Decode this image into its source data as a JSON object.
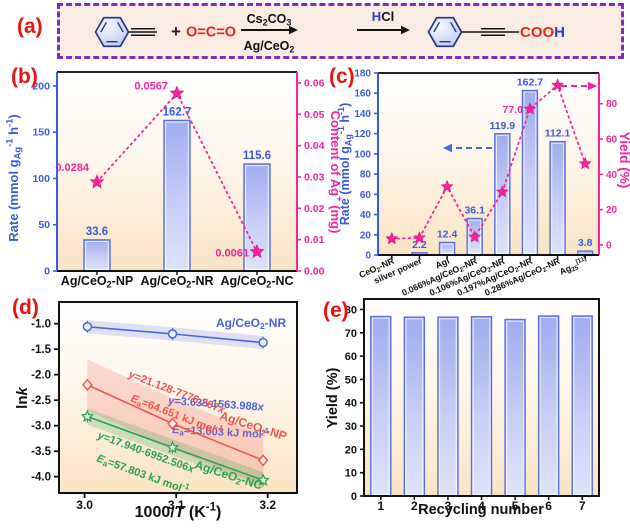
{
  "colors": {
    "blue": "#3C5BDC",
    "pink": "#F5239E",
    "panel_letter_red": "#EE1111",
    "line_blue": "#4A63E0",
    "line_red": "#F0544F",
    "line_green": "#2BA24C",
    "bar_border": "#5C6CE3",
    "bar_top": "#9FACEF",
    "bar_mid": "#C7CEF7",
    "bar_bottom": "#DEE3FB",
    "plot_bg_bottom": "#FAE4C4",
    "panel_a_bg": "#FAEBE3",
    "panel_a_border": "#7B2FBF",
    "co2_red": "#E8231F",
    "hcl_blue": "#2B3BD6",
    "ink": "#111111"
  },
  "panels": {
    "a": {
      "label": "(a)",
      "reaction": {
        "plus": "+",
        "co2": "O=C=O",
        "arrow1_top": "Cs<sub>2</sub>CO<sub>3</sub>",
        "arrow1_bottom": "Ag/CeO<sub>2</sub>",
        "hcl_h": "H",
        "hcl_cl": "Cl",
        "product_coo": "COO",
        "product_h": "H"
      }
    },
    "b": {
      "label": "(b)"
    },
    "c": {
      "label": "(c)"
    },
    "d": {
      "label": "(d)"
    },
    "e": {
      "label": "(e)"
    }
  },
  "chart_data": [
    {
      "id": "b",
      "type": "bar+scatter",
      "categories": [
        "Ag/CeO<sub>2</sub>-NP",
        "Ag/CeO<sub>2</sub>-NR",
        "Ag/CeO<sub>2</sub>-NC"
      ],
      "bars": {
        "values": [
          33.6,
          162.7,
          115.6
        ],
        "labels": [
          "33.6",
          "162.7",
          "115.6"
        ]
      },
      "scatter": {
        "values": [
          0.0284,
          0.0567,
          0.0061
        ],
        "labels": [
          "0.0284",
          "0.0567",
          "0.0061"
        ]
      },
      "axes": {
        "left": {
          "title": "Rate (mmol g<sub>Ag</sub><sup>-1</sup> h<sup>-1</sup>)",
          "ticks": [
            0,
            50,
            100,
            150,
            200
          ],
          "lim": [
            0,
            215
          ],
          "fmt": 0
        },
        "right": {
          "title": "Content of Ag<sup>+</sup> (mg)",
          "ticks": [
            0,
            0.01,
            0.02,
            0.03,
            0.04,
            0.05,
            0.06
          ],
          "lim": [
            0,
            0.0635
          ],
          "fmt": 2
        }
      }
    },
    {
      "id": "c",
      "type": "bar+scatter",
      "categories": [
        "CeO<sub>2</sub>-NR",
        "silver power",
        "AgI",
        "0.066%Ag/CeO<sub>2</sub>-NR",
        "0.106%Ag/CeO<sub>2</sub>-NR",
        "0.197%Ag/CeO<sub>2</sub>-NR",
        "0.286%Ag/CeO<sub>2</sub>-NR",
        "Ag<sub>25</sub><sup>[11]</sup>"
      ],
      "bars": {
        "values": [
          0,
          2.2,
          12.4,
          36.1,
          119.9,
          162.7,
          112.1,
          3.8
        ],
        "labels": [
          "",
          "2.2",
          "12.4",
          "36.1",
          "119.9",
          "162.7",
          "112.1",
          "3.8"
        ]
      },
      "scatter": {
        "values": [
          3.5,
          4,
          33,
          4.5,
          30,
          77,
          90.5,
          46
        ],
        "labels": [
          "",
          "",
          "",
          "",
          "",
          "77.0",
          "",
          ""
        ]
      },
      "axes": {
        "left": {
          "title": "Rate (mmol g<sub>Ag</sub><sup>-1</sup> h<sup>-1</sup>)",
          "ticks": [
            0,
            20,
            40,
            60,
            80,
            100,
            120,
            140,
            160,
            180
          ],
          "lim": [
            0,
            180
          ],
          "fmt": 0
        },
        "right": {
          "title": "Yield (%)",
          "ticks": [
            0,
            20,
            40,
            60,
            80
          ],
          "lim": [
            -5.7,
            97.4
          ],
          "fmt": 0
        }
      }
    },
    {
      "id": "d",
      "type": "line",
      "xlabel": "1000/<i>T</i> (K<sup>-1</sup>)",
      "ylabel": "ln<i>k</i>",
      "xticks": [
        3.0,
        3.1,
        3.2
      ],
      "xlim": [
        2.972,
        3.232
      ],
      "yticks": [
        -1.0,
        -1.5,
        -2.0,
        -2.5,
        -3.0,
        -3.5,
        -4.0
      ],
      "ylim": [
        -4.32,
        -0.575
      ],
      "series": [
        {
          "name": "Ag/CeO<sub>2</sub>-NR",
          "x": [
            3.003,
            3.096,
            3.195
          ],
          "y": [
            -1.06,
            -1.2,
            -1.37
          ],
          "equation": "<i>y</i>=3.635-1563.988<i>x</i>",
          "ea": "<i>E</i><sub>a</sub>=13.003 kJ mol<sup>-1</sup>"
        },
        {
          "name": "Ag/CeO<sub>2</sub>-NP",
          "x": [
            3.003,
            3.096,
            3.195
          ],
          "y": [
            -2.2,
            -2.96,
            -3.68
          ],
          "equation": "<i>y</i>=21.128-7776.207<i>x</i>",
          "ea": "<i>E</i><sub>a</sub>=64.651 kJ mol<sup>-1</sup>"
        },
        {
          "name": "Ag/CeO<sub>2</sub>-NC",
          "x": [
            3.003,
            3.096,
            3.195
          ],
          "y": [
            -2.82,
            -3.43,
            -4.07
          ],
          "equation": "<i>y</i>=17.940-6952.506<i>x</i>",
          "ea": "<i>E</i><sub>a</sub>=57.803 kJ mol<sup>-1</sup>"
        }
      ]
    },
    {
      "id": "e",
      "type": "bar",
      "xlabel": "Recycling number",
      "ylabel": "Yield (%)",
      "categories": [
        "1",
        "2",
        "3",
        "4",
        "5",
        "6",
        "7"
      ],
      "values": [
        77,
        76.7,
        76.7,
        76.9,
        75.7,
        77.2,
        77.2
      ],
      "yticks": [
        0,
        10,
        20,
        30,
        40,
        50,
        60,
        70,
        80
      ],
      "ylim": [
        0,
        84.5
      ]
    }
  ]
}
